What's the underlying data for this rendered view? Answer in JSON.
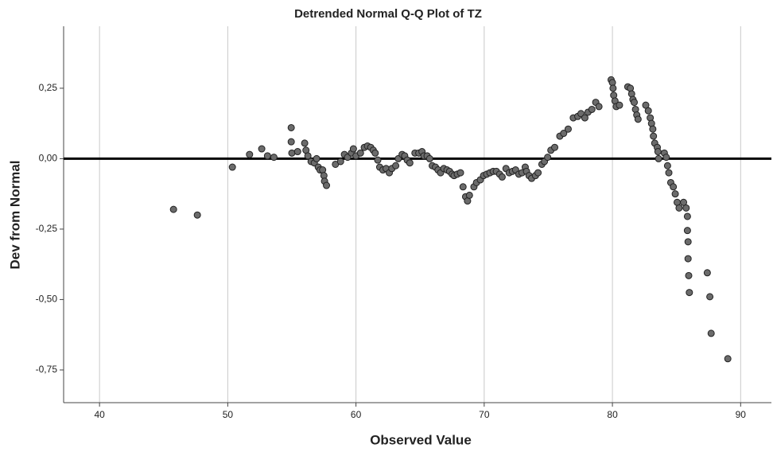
{
  "chart_data": {
    "type": "scatter",
    "title": "Detrended Normal Q-Q Plot of TZ",
    "x_label": "Observed Value",
    "y_label": "Dev from Normal",
    "xlim": [
      37.2,
      92.4
    ],
    "ylim": [
      -0.866,
      0.47
    ],
    "xticks": [
      40,
      50,
      60,
      70,
      80,
      90
    ],
    "yticks": [
      {
        "value": -0.75,
        "label": "-0,75"
      },
      {
        "value": -0.5,
        "label": "-0,50"
      },
      {
        "value": -0.25,
        "label": "-0,25"
      },
      {
        "value": 0,
        "label": "0,00"
      },
      {
        "value": 0.25,
        "label": "0,25"
      }
    ],
    "grid": true,
    "reference_line": 0,
    "color": "#6b6b6b",
    "x": [
      45.77,
      47.63,
      50.36,
      51.7,
      52.65,
      53.1,
      53.6,
      54.95,
      54.95,
      55.0,
      55.45,
      56.0,
      56.1,
      56.25,
      56.5,
      56.75,
      56.93,
      57.06,
      57.2,
      57.4,
      57.5,
      57.55,
      57.7,
      58.4,
      58.8,
      59.1,
      59.35,
      59.65,
      59.8,
      60.0,
      60.35,
      60.65,
      60.9,
      61.15,
      61.35,
      61.5,
      61.7,
      61.85,
      62.1,
      62.35,
      62.6,
      62.8,
      63.1,
      63.3,
      63.6,
      63.8,
      64.0,
      64.2,
      64.6,
      64.9,
      65.15,
      65.3,
      65.55,
      65.75,
      65.95,
      66.2,
      66.4,
      66.6,
      66.85,
      67.1,
      67.3,
      67.5,
      67.65,
      67.9,
      68.15,
      68.35,
      68.55,
      68.7,
      68.85,
      69.2,
      69.4,
      69.7,
      69.95,
      70.2,
      70.45,
      70.7,
      70.95,
      71.2,
      71.4,
      71.7,
      71.95,
      72.2,
      72.45,
      72.7,
      72.95,
      73.2,
      73.3,
      73.5,
      73.7,
      74.0,
      74.2,
      74.5,
      74.7,
      74.95,
      75.2,
      75.5,
      75.9,
      76.2,
      76.55,
      76.95,
      77.3,
      77.55,
      77.85,
      78.1,
      78.4,
      78.7,
      78.95,
      79.9,
      80.0,
      80.05,
      80.1,
      80.2,
      80.3,
      80.55,
      81.2,
      81.4,
      81.5,
      81.6,
      81.7,
      81.8,
      81.9,
      82.0,
      82.6,
      82.8,
      82.95,
      83.05,
      83.15,
      83.2,
      83.3,
      83.5,
      83.55,
      83.6,
      84.05,
      84.2,
      84.3,
      84.4,
      84.55,
      84.75,
      84.9,
      85.05,
      85.2,
      85.55,
      85.75,
      85.85,
      85.85,
      85.9,
      85.9,
      85.95,
      86.0,
      87.4,
      87.6,
      87.7,
      89.0
    ],
    "y": [
      -0.18,
      -0.2,
      -0.03,
      0.015,
      0.035,
      0.01,
      0.005,
      0.11,
      0.06,
      0.02,
      0.025,
      0.055,
      0.03,
      0.01,
      -0.01,
      -0.015,
      0,
      -0.03,
      -0.04,
      -0.04,
      -0.06,
      -0.08,
      -0.095,
      -0.02,
      -0.01,
      0.015,
      0.005,
      0.02,
      0.035,
      0.01,
      0.02,
      0.04,
      0.045,
      0.04,
      0.03,
      0.02,
      -0.005,
      -0.03,
      -0.04,
      -0.035,
      -0.05,
      -0.035,
      -0.025,
      0,
      0.015,
      0.01,
      -0.005,
      -0.015,
      0.02,
      0.02,
      0.025,
      0.01,
      0.01,
      0,
      -0.025,
      -0.03,
      -0.04,
      -0.05,
      -0.035,
      -0.04,
      -0.045,
      -0.055,
      -0.06,
      -0.055,
      -0.05,
      -0.1,
      -0.135,
      -0.15,
      -0.13,
      -0.1,
      -0.085,
      -0.075,
      -0.06,
      -0.055,
      -0.05,
      -0.045,
      -0.045,
      -0.055,
      -0.065,
      -0.035,
      -0.05,
      -0.045,
      -0.04,
      -0.055,
      -0.05,
      -0.03,
      -0.045,
      -0.06,
      -0.07,
      -0.06,
      -0.05,
      -0.02,
      -0.01,
      0.005,
      0.03,
      0.04,
      0.08,
      0.09,
      0.105,
      0.145,
      0.15,
      0.16,
      0.145,
      0.165,
      0.175,
      0.2,
      0.185,
      0.28,
      0.27,
      0.25,
      0.225,
      0.205,
      0.185,
      0.19,
      0.255,
      0.25,
      0.23,
      0.21,
      0.2,
      0.175,
      0.155,
      0.14,
      0.19,
      0.17,
      0.145,
      0.125,
      0.105,
      0.08,
      0.055,
      0.04,
      0.025,
      0,
      0.02,
      0.005,
      -0.025,
      -0.05,
      -0.085,
      -0.1,
      -0.125,
      -0.155,
      -0.175,
      -0.155,
      -0.175,
      -0.205,
      -0.255,
      -0.295,
      -0.355,
      -0.415,
      -0.475,
      -0.405,
      -0.49,
      -0.62,
      -0.71
    ]
  }
}
